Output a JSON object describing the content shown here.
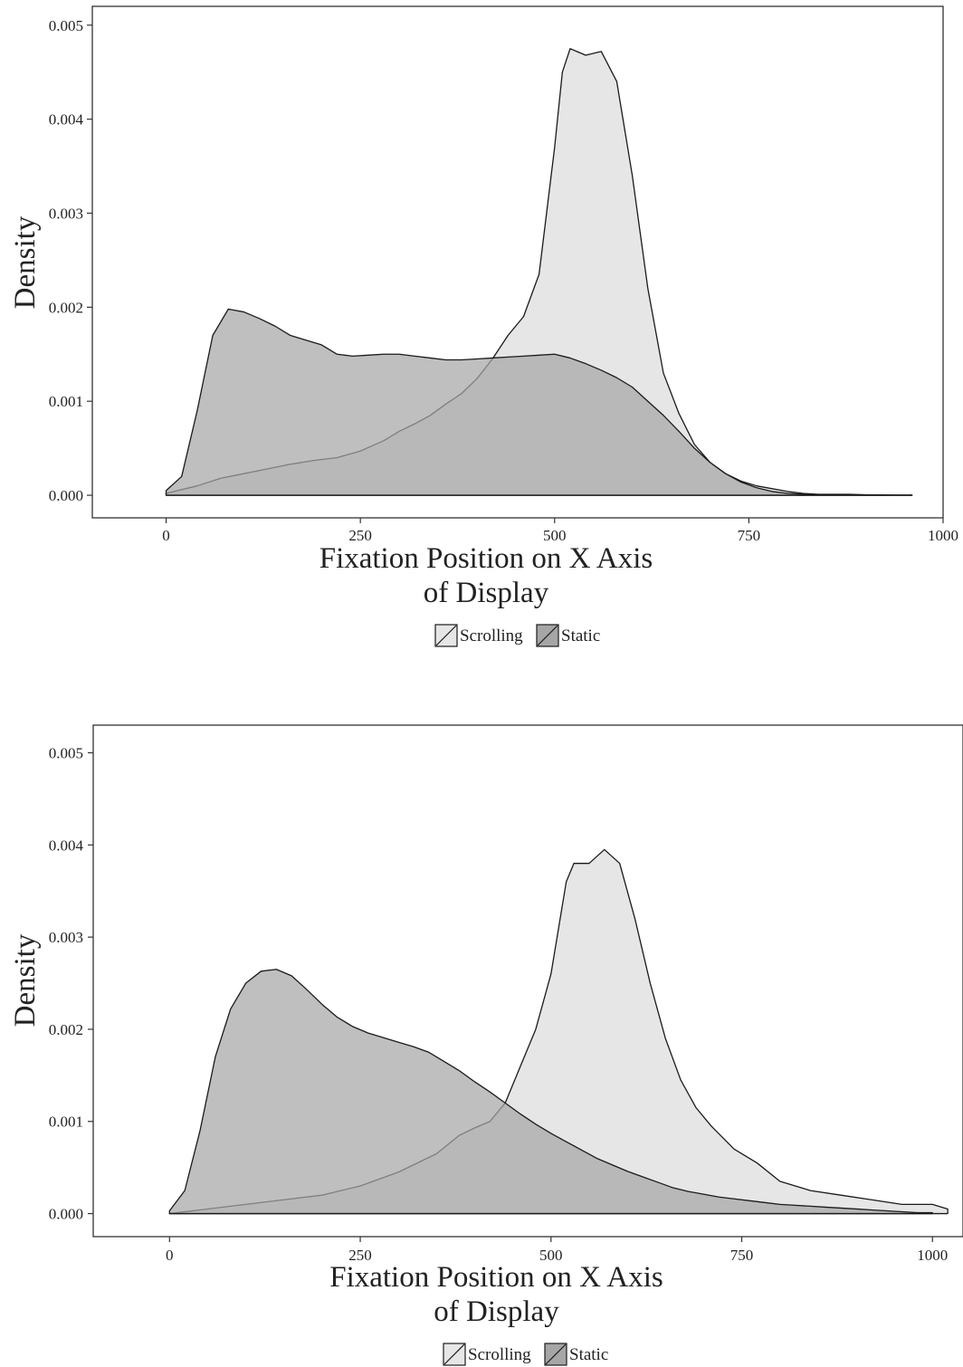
{
  "colors": {
    "scrolling_fill": "#e6e6e6",
    "static_fill": "#a6a6a6",
    "overlap_fill": "#a6a6a6",
    "line": "#1a1a1a",
    "frame": "#333333"
  },
  "chart_data": [
    {
      "type": "area",
      "xlabel_line1": "Fixation Position on X Axis",
      "xlabel_line2": "of Display",
      "ylabel": "Density",
      "xlim": [
        -95,
        1000
      ],
      "ylim": [
        -0.00024,
        0.0052
      ],
      "x_ticks": [
        0,
        250,
        500,
        750,
        1000
      ],
      "x_tick_labels": [
        "0",
        "250",
        "500",
        "750",
        "1000"
      ],
      "y_ticks": [
        0,
        0.001,
        0.002,
        0.003,
        0.004,
        0.005
      ],
      "y_tick_labels": [
        "0.000",
        "0.001",
        "0.002",
        "0.003",
        "0.004",
        "0.005"
      ],
      "grid": false,
      "legend": {
        "position": "bottom",
        "entries": [
          "Scrolling",
          "Static"
        ]
      },
      "series": [
        {
          "name": "Scrolling",
          "x": [
            0,
            40,
            70,
            100,
            130,
            160,
            190,
            220,
            250,
            280,
            300,
            320,
            340,
            360,
            380,
            400,
            420,
            440,
            460,
            480,
            500,
            510,
            520,
            540,
            560,
            580,
            600,
            620,
            640,
            660,
            680,
            700,
            720,
            740,
            760,
            780,
            800,
            820,
            840,
            860,
            880,
            900,
            920,
            940,
            960
          ],
          "y": [
            2e-05,
            0.0001,
            0.00018,
            0.00023,
            0.00028,
            0.00033,
            0.00037,
            0.0004,
            0.00047,
            0.00058,
            0.00068,
            0.00076,
            0.00085,
            0.00097,
            0.00108,
            0.00124,
            0.00145,
            0.0017,
            0.0019,
            0.00235,
            0.0037,
            0.0045,
            0.00475,
            0.00468,
            0.00472,
            0.0044,
            0.0034,
            0.0022,
            0.0013,
            0.00087,
            0.00054,
            0.00035,
            0.00023,
            0.00015,
            0.0001,
            7e-05,
            4e-05,
            2e-05,
            1e-05,
            1e-05,
            1e-05,
            5e-06,
            4e-06,
            3e-06,
            3e-06
          ]
        },
        {
          "name": "Static",
          "x": [
            0,
            20,
            40,
            60,
            80,
            100,
            120,
            140,
            160,
            180,
            200,
            220,
            240,
            260,
            280,
            300,
            320,
            340,
            360,
            380,
            400,
            420,
            440,
            460,
            480,
            500,
            520,
            540,
            560,
            580,
            600,
            620,
            640,
            660,
            680,
            700,
            720,
            740,
            760,
            780,
            800,
            820,
            840,
            860,
            880,
            900,
            920,
            940,
            960
          ],
          "y": [
            5e-05,
            0.0002,
            0.0009,
            0.0017,
            0.00198,
            0.00195,
            0.00188,
            0.0018,
            0.0017,
            0.00165,
            0.0016,
            0.0015,
            0.00148,
            0.00149,
            0.0015,
            0.0015,
            0.00148,
            0.00146,
            0.00144,
            0.00144,
            0.00145,
            0.00146,
            0.00147,
            0.00148,
            0.00149,
            0.0015,
            0.00146,
            0.0014,
            0.00133,
            0.00125,
            0.00115,
            0.001,
            0.00085,
            0.00068,
            0.0005,
            0.00035,
            0.00023,
            0.00014,
            8e-05,
            4e-05,
            2e-05,
            1e-05,
            5e-06,
            3e-06,
            2e-06,
            2e-06,
            1e-06,
            1e-06,
            1e-06
          ]
        }
      ]
    },
    {
      "type": "area",
      "xlabel_line1": "Fixation Position on X Axis",
      "xlabel_line2": "of Display",
      "ylabel": "Density",
      "xlim": [
        -100,
        1040
      ],
      "ylim": [
        -0.00025,
        0.0053
      ],
      "x_ticks": [
        0,
        250,
        500,
        750,
        1000
      ],
      "x_tick_labels": [
        "0",
        "250",
        "500",
        "750",
        "1000"
      ],
      "y_ticks": [
        0,
        0.001,
        0.002,
        0.003,
        0.004,
        0.005
      ],
      "y_tick_labels": [
        "0.000",
        "0.001",
        "0.002",
        "0.003",
        "0.004",
        "0.005"
      ],
      "grid": false,
      "legend": {
        "position": "bottom",
        "entries": [
          "Scrolling",
          "Static"
        ]
      },
      "series": [
        {
          "name": "Scrolling",
          "x": [
            0,
            50,
            100,
            150,
            200,
            250,
            300,
            350,
            380,
            400,
            420,
            440,
            460,
            480,
            500,
            520,
            530,
            550,
            570,
            590,
            610,
            630,
            650,
            670,
            690,
            710,
            740,
            770,
            800,
            840,
            880,
            920,
            960,
            1000,
            1020
          ],
          "y": [
            0.0,
            5e-05,
            0.0001,
            0.00015,
            0.0002,
            0.0003,
            0.00045,
            0.00065,
            0.00085,
            0.00093,
            0.001,
            0.0012,
            0.0016,
            0.002,
            0.0026,
            0.0036,
            0.0038,
            0.0038,
            0.00395,
            0.0038,
            0.0032,
            0.0025,
            0.0019,
            0.00145,
            0.00115,
            0.00095,
            0.0007,
            0.00055,
            0.00035,
            0.00025,
            0.0002,
            0.00015,
            0.0001,
            0.0001,
            5e-05
          ]
        },
        {
          "name": "Static",
          "x": [
            0,
            20,
            40,
            60,
            80,
            100,
            120,
            140,
            160,
            180,
            200,
            220,
            240,
            260,
            280,
            300,
            320,
            340,
            360,
            380,
            400,
            420,
            440,
            460,
            480,
            500,
            520,
            540,
            560,
            580,
            600,
            620,
            640,
            660,
            680,
            700,
            720,
            740,
            760,
            780,
            800,
            820,
            840,
            860,
            880,
            900,
            920,
            940,
            960,
            980,
            1000
          ],
          "y": [
            3e-05,
            0.00025,
            0.0009,
            0.0017,
            0.00222,
            0.0025,
            0.00263,
            0.00265,
            0.00258,
            0.00243,
            0.00227,
            0.00213,
            0.00203,
            0.00196,
            0.00191,
            0.00186,
            0.00181,
            0.00175,
            0.00165,
            0.00155,
            0.00143,
            0.00132,
            0.0012,
            0.00108,
            0.00097,
            0.00087,
            0.00078,
            0.00069,
            0.0006,
            0.00053,
            0.00046,
            0.0004,
            0.00034,
            0.00028,
            0.00024,
            0.00021,
            0.00018,
            0.00016,
            0.00014,
            0.00012,
            0.0001,
            9e-05,
            8e-05,
            7e-05,
            6e-05,
            5e-05,
            4e-05,
            3e-05,
            2e-05,
            1e-05,
            1e-05
          ]
        }
      ]
    }
  ]
}
